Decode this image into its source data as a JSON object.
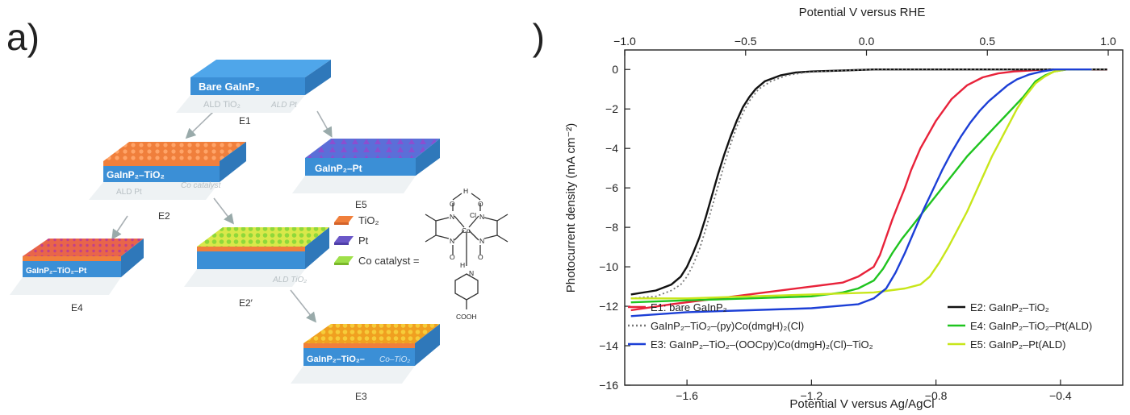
{
  "panel_a": {
    "label": "a)",
    "samples": {
      "E1": {
        "name": "Bare GaInP₂",
        "id": "E1"
      },
      "E2": {
        "name": "GaInP₂–TiO₂",
        "id": "E2"
      },
      "E5": {
        "name": "GaInP₂–Pt",
        "id": "E5"
      },
      "E4": {
        "name": "GaInP₂–TiO₂–Pt",
        "id": "E4"
      },
      "E2p": {
        "name": "",
        "id": "E2′"
      },
      "E3": {
        "name": "GaInP₂–TiO₂–",
        "id": "E3",
        "extra": "Co–TiO₂"
      }
    },
    "steps": {
      "ald_tio2": "ALD TiO₂",
      "ald_pt_top": "ALD Pt",
      "ald_pt_left": "ALD Pt",
      "co_catalyst": "Co catalyst",
      "ald_tio2_lower": "ALD TiO₂"
    },
    "legend": {
      "tio2": "TiO₂",
      "pt": "Pt",
      "co": "Co catalyst ="
    },
    "molecule": {
      "h": "H",
      "o_top_left": "O",
      "o_top_right": "O",
      "cl": "Cl",
      "co": "Co",
      "n1": "N",
      "n2": "N",
      "n3": "N",
      "n4": "N",
      "o_bot_left": "O",
      "o_bot_right": "O",
      "h_bot": "H",
      "n_py": "N",
      "cooh": "COOH"
    },
    "colors": {
      "substrate": "#3b8fd6",
      "substrate_top": "#4fa6ea",
      "tio2": "#f0884a",
      "pt": "#6a57c8",
      "co": "#9fe04a",
      "co_dark": "#f0a21c"
    }
  },
  "panel_b": {
    "label": "b)"
  },
  "chart_data": {
    "type": "line",
    "xlabel": "Potential V versus Ag/AgCl",
    "ylabel": "Photocurrent density (mA cm⁻²)",
    "top_axis_label": "Potential V versus RHE",
    "xlim": [
      -1.8,
      -0.2
    ],
    "ylim": [
      -16,
      0.5
    ],
    "top_xlim_rhe": [
      -1.0,
      1.06
    ],
    "x_ticks": [
      -1.6,
      -1.2,
      -0.8,
      -0.4
    ],
    "x_tick_labels": [
      "−1.6",
      "−1.2",
      "−0.8",
      "−0.4"
    ],
    "top_ticks": [
      -1.0,
      -0.5,
      0.0,
      0.5,
      1.0
    ],
    "top_tick_labels": [
      "−1.0",
      "−0.5",
      "0.0",
      "0.5",
      "1.0"
    ],
    "y_ticks": [
      0,
      -2,
      -4,
      -6,
      -8,
      -10,
      -12,
      -14,
      -16
    ],
    "y_tick_labels": [
      "0",
      "−2",
      "−4",
      "−6",
      "−8",
      "−10",
      "−12",
      "−14",
      "−16"
    ],
    "grid": false,
    "legend_position": "lower",
    "series": [
      {
        "name": "E1: bare GaInP₂",
        "color": "#e8223a",
        "dash": "solid",
        "x": [
          -1.78,
          -1.65,
          -1.5,
          -1.35,
          -1.2,
          -1.1,
          -1.05,
          -1.0,
          -0.98,
          -0.96,
          -0.94,
          -0.92,
          -0.9,
          -0.88,
          -0.85,
          -0.8,
          -0.75,
          -0.7,
          -0.65,
          -0.6,
          -0.55,
          -0.5,
          -0.45,
          -0.4,
          -0.35,
          -0.3,
          -0.25
        ],
        "y": [
          -12.2,
          -11.9,
          -11.6,
          -11.3,
          -11.0,
          -10.8,
          -10.5,
          -10.0,
          -9.4,
          -8.5,
          -7.6,
          -6.8,
          -6.0,
          -5.1,
          -4.0,
          -2.6,
          -1.5,
          -0.8,
          -0.4,
          -0.2,
          -0.1,
          -0.05,
          0,
          0,
          0,
          0,
          0
        ]
      },
      {
        "name": "E2: GaInP₂–TiO₂",
        "color": "#111111",
        "dash": "solid",
        "x": [
          -1.78,
          -1.7,
          -1.65,
          -1.62,
          -1.6,
          -1.58,
          -1.56,
          -1.54,
          -1.52,
          -1.5,
          -1.48,
          -1.46,
          -1.44,
          -1.42,
          -1.4,
          -1.38,
          -1.35,
          -1.3,
          -1.25,
          -1.2,
          -1.1,
          -1.0,
          -0.8,
          -0.6,
          -0.4,
          -0.25
        ],
        "y": [
          -11.4,
          -11.2,
          -10.9,
          -10.5,
          -10.0,
          -9.3,
          -8.5,
          -7.5,
          -6.4,
          -5.3,
          -4.3,
          -3.4,
          -2.6,
          -1.9,
          -1.4,
          -1.0,
          -0.6,
          -0.3,
          -0.15,
          -0.1,
          -0.05,
          0,
          0,
          0,
          0,
          0
        ]
      },
      {
        "name": "GaInP₂–TiO₂–(py)Co(dmgH)₂(Cl)",
        "color": "#777777",
        "dash": "dotted",
        "x": [
          -1.78,
          -1.7,
          -1.65,
          -1.62,
          -1.6,
          -1.58,
          -1.56,
          -1.54,
          -1.52,
          -1.5,
          -1.48,
          -1.46,
          -1.44,
          -1.42,
          -1.4,
          -1.37,
          -1.33,
          -1.28,
          -1.22,
          -1.15,
          -1.0,
          -0.8,
          -0.6,
          -0.4,
          -0.25
        ],
        "y": [
          -11.6,
          -11.5,
          -11.2,
          -10.9,
          -10.5,
          -9.9,
          -9.1,
          -8.1,
          -7.0,
          -5.9,
          -4.8,
          -3.8,
          -2.9,
          -2.2,
          -1.6,
          -1.0,
          -0.6,
          -0.3,
          -0.15,
          -0.08,
          0,
          0,
          0,
          0,
          0
        ]
      },
      {
        "name": "E4: GaInP₂–TiO₂–Pt(ALD)",
        "color": "#1fc41f",
        "dash": "solid",
        "x": [
          -1.78,
          -1.6,
          -1.4,
          -1.2,
          -1.1,
          -1.05,
          -1.0,
          -0.97,
          -0.94,
          -0.91,
          -0.88,
          -0.85,
          -0.82,
          -0.79,
          -0.76,
          -0.73,
          -0.7,
          -0.67,
          -0.64,
          -0.61,
          -0.58,
          -0.55,
          -0.52,
          -0.5,
          -0.48,
          -0.45,
          -0.42,
          -0.38,
          -0.3
        ],
        "y": [
          -11.8,
          -11.7,
          -11.6,
          -11.5,
          -11.3,
          -11.1,
          -10.7,
          -10.1,
          -9.3,
          -8.6,
          -8.0,
          -7.4,
          -6.8,
          -6.2,
          -5.6,
          -5.0,
          -4.4,
          -3.9,
          -3.4,
          -2.9,
          -2.4,
          -1.9,
          -1.4,
          -1.0,
          -0.6,
          -0.3,
          -0.1,
          0,
          0
        ]
      },
      {
        "name": "E5: GaInP₂–Pt(ALD)",
        "color": "#c8e61a",
        "dash": "solid",
        "x": [
          -1.78,
          -1.6,
          -1.4,
          -1.2,
          -1.0,
          -0.95,
          -0.9,
          -0.85,
          -0.82,
          -0.79,
          -0.76,
          -0.73,
          -0.7,
          -0.68,
          -0.66,
          -0.64,
          -0.62,
          -0.6,
          -0.58,
          -0.56,
          -0.54,
          -0.52,
          -0.5,
          -0.48,
          -0.45,
          -0.42,
          -0.38,
          -0.3
        ],
        "y": [
          -11.6,
          -11.6,
          -11.5,
          -11.4,
          -11.3,
          -11.2,
          -11.1,
          -10.9,
          -10.5,
          -9.8,
          -9.0,
          -8.1,
          -7.2,
          -6.5,
          -5.8,
          -5.1,
          -4.4,
          -3.8,
          -3.2,
          -2.6,
          -2.0,
          -1.5,
          -1.1,
          -0.7,
          -0.35,
          -0.1,
          0,
          0
        ]
      },
      {
        "name": "E3: GaInP₂–TiO₂–(OOCpy)Co(dmgH)₂(Cl)–TiO₂",
        "color": "#1c3fd6",
        "dash": "solid",
        "x": [
          -1.78,
          -1.6,
          -1.4,
          -1.2,
          -1.05,
          -1.0,
          -0.96,
          -0.93,
          -0.9,
          -0.87,
          -0.84,
          -0.81,
          -0.78,
          -0.75,
          -0.72,
          -0.69,
          -0.66,
          -0.63,
          -0.6,
          -0.57,
          -0.54,
          -0.5,
          -0.46,
          -0.42,
          -0.38,
          -0.3
        ],
        "y": [
          -12.5,
          -12.3,
          -12.2,
          -12.1,
          -11.9,
          -11.6,
          -11.1,
          -10.3,
          -9.3,
          -8.2,
          -7.1,
          -6.1,
          -5.1,
          -4.2,
          -3.4,
          -2.7,
          -2.1,
          -1.6,
          -1.2,
          -0.8,
          -0.5,
          -0.25,
          -0.1,
          0,
          0,
          0
        ]
      }
    ],
    "legend_left": [
      {
        "name": "E1: bare GaInP₂",
        "color": "#e8223a",
        "dash": "solid"
      },
      {
        "name": "GaInP₂–TiO₂–(py)Co(dmgH)₂(Cl)",
        "color": "#777777",
        "dash": "dotted"
      },
      {
        "name": "E3: GaInP₂–TiO₂–(OOCpy)Co(dmgH)₂(Cl)–TiO₂",
        "color": "#1c3fd6",
        "dash": "solid"
      }
    ],
    "legend_right": [
      {
        "name": "E2: GaInP₂–TiO₂",
        "color": "#111111",
        "dash": "solid"
      },
      {
        "name": "E4: GaInP₂–TiO₂–Pt(ALD)",
        "color": "#1fc41f",
        "dash": "solid"
      },
      {
        "name": "E5: GaInP₂–Pt(ALD)",
        "color": "#c8e61a",
        "dash": "solid"
      }
    ]
  }
}
